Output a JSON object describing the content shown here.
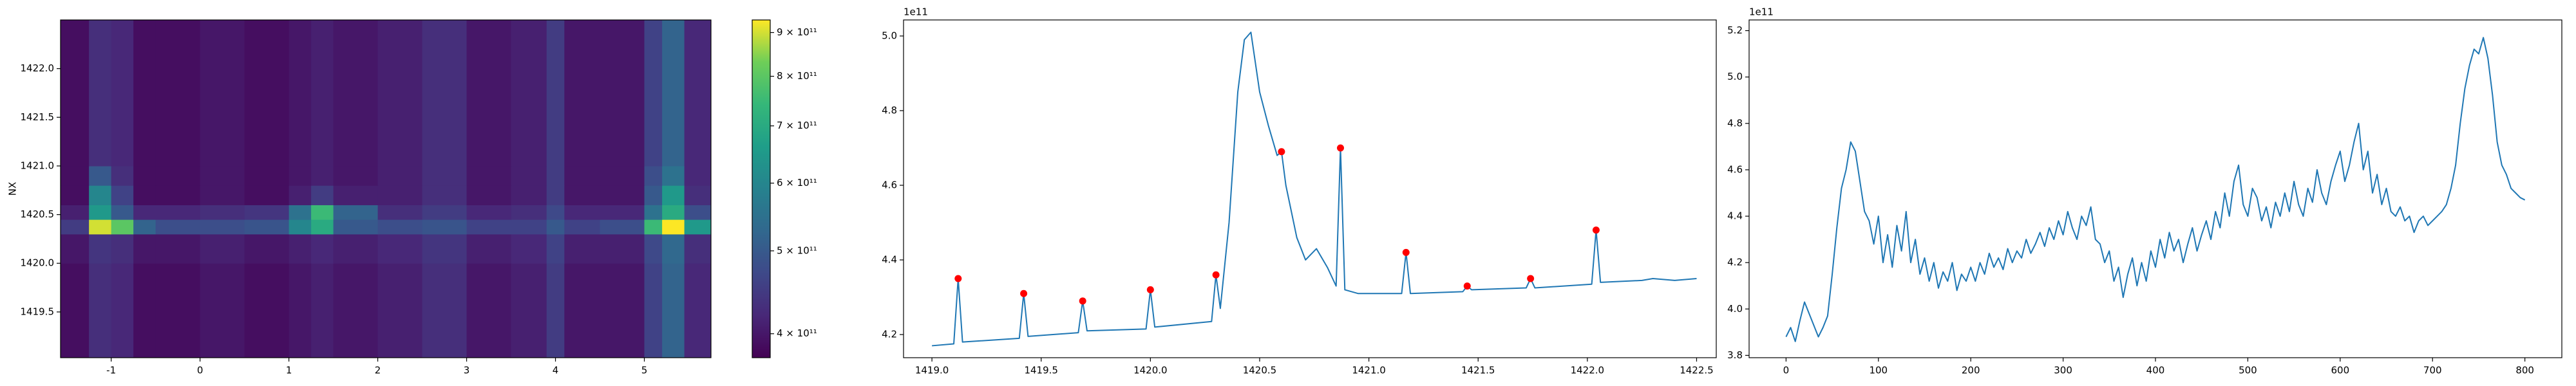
{
  "chart_data": [
    {
      "type": "heatmap",
      "ylabel": "NX",
      "colormap": "viridis",
      "zscale": "log",
      "xlim": [
        -1.57,
        5.75
      ],
      "xticks": [
        -1,
        0,
        1,
        2,
        3,
        4,
        5
      ],
      "ylim": [
        1419.03,
        1422.5
      ],
      "yticks": [
        1419.5,
        {
          "value": 1420,
          "label": "1420.0"
        },
        1420.5,
        {
          "value": 1421,
          "label": "1421.0"
        },
        1421.5,
        {
          "value": 1422,
          "label": "1422.0"
        }
      ],
      "x_edges": [
        -1.57,
        -1.25,
        -1.0,
        -0.75,
        -0.5,
        0,
        0.5,
        1.0,
        1.25,
        1.5,
        2.0,
        2.5,
        3.0,
        3.5,
        3.9,
        4.1,
        4.5,
        5.0,
        5.2,
        5.45,
        5.75
      ],
      "y_edges": [
        1419.03,
        1420.0,
        1420.3,
        1420.45,
        1420.6,
        1420.8,
        1421.0,
        1422.5
      ],
      "z": [
        [
          390000000000.0,
          430000000000.0,
          420000000000.0,
          390000000000.0,
          390000000000.0,
          400000000000.0,
          390000000000.0,
          400000000000.0,
          410000000000.0,
          400000000000.0,
          410000000000.0,
          430000000000.0,
          400000000000.0,
          410000000000.0,
          450000000000.0,
          400000000000.0,
          400000000000.0,
          460000000000.0,
          520000000000.0,
          420000000000.0
        ],
        [
          400000000000.0,
          440000000000.0,
          430000000000.0,
          400000000000.0,
          400000000000.0,
          410000000000.0,
          400000000000.0,
          410000000000.0,
          420000000000.0,
          410000000000.0,
          420000000000.0,
          440000000000.0,
          410000000000.0,
          420000000000.0,
          460000000000.0,
          410000000000.0,
          410000000000.0,
          470000000000.0,
          530000000000.0,
          430000000000.0
        ],
        [
          450000000000.0,
          900000000000.0,
          800000000000.0,
          520000000000.0,
          480000000000.0,
          480000000000.0,
          490000000000.0,
          600000000000.0,
          700000000000.0,
          500000000000.0,
          480000000000.0,
          490000000000.0,
          460000000000.0,
          460000000000.0,
          500000000000.0,
          460000000000.0,
          480000000000.0,
          750000000000.0,
          930000000000.0,
          650000000000.0
        ],
        [
          410000000000.0,
          650000000000.0,
          500000000000.0,
          420000000000.0,
          420000000000.0,
          430000000000.0,
          440000000000.0,
          550000000000.0,
          750000000000.0,
          520000000000.0,
          430000000000.0,
          450000000000.0,
          420000000000.0,
          430000000000.0,
          470000000000.0,
          420000000000.0,
          420000000000.0,
          550000000000.0,
          700000000000.0,
          480000000000.0
        ],
        [
          390000000000.0,
          600000000000.0,
          460000000000.0,
          390000000000.0,
          390000000000.0,
          400000000000.0,
          390000000000.0,
          410000000000.0,
          450000000000.0,
          410000000000.0,
          410000000000.0,
          430000000000.0,
          400000000000.0,
          410000000000.0,
          450000000000.0,
          400000000000.0,
          400000000000.0,
          500000000000.0,
          650000000000.0,
          430000000000.0
        ],
        [
          390000000000.0,
          500000000000.0,
          430000000000.0,
          390000000000.0,
          390000000000.0,
          400000000000.0,
          390000000000.0,
          400000000000.0,
          410000000000.0,
          400000000000.0,
          410000000000.0,
          430000000000.0,
          400000000000.0,
          410000000000.0,
          450000000000.0,
          400000000000.0,
          400000000000.0,
          480000000000.0,
          550000000000.0,
          420000000000.0
        ],
        [
          390000000000.0,
          430000000000.0,
          420000000000.0,
          390000000000.0,
          390000000000.0,
          400000000000.0,
          390000000000.0,
          400000000000.0,
          410000000000.0,
          400000000000.0,
          410000000000.0,
          430000000000.0,
          400000000000.0,
          410000000000.0,
          450000000000.0,
          400000000000.0,
          400000000000.0,
          460000000000.0,
          520000000000.0,
          420000000000.0
        ]
      ],
      "zlim": [
        375000000000.0,
        931000000000.0
      ],
      "zticks": [
        {
          "value": 400000000000.0,
          "label": "4 × 10¹¹"
        },
        {
          "value": 500000000000.0,
          "label": "5 × 10¹¹"
        },
        {
          "value": 600000000000.0,
          "label": "6 × 10¹¹"
        },
        {
          "value": 700000000000.0,
          "label": "7 × 10¹¹"
        },
        {
          "value": 800000000000.0,
          "label": "8 × 10¹¹"
        },
        {
          "value": 900000000000.0,
          "label": "9 × 10¹¹"
        }
      ]
    },
    {
      "type": "line",
      "offset_label": "1e11",
      "xlim": [
        1418.87,
        1422.59
      ],
      "xticks": [
        {
          "value": 1419,
          "label": "1419.0"
        },
        1419.5,
        {
          "value": 1420,
          "label": "1420.0"
        },
        1420.5,
        {
          "value": 1421,
          "label": "1421.0"
        },
        1421.5,
        {
          "value": 1422,
          "label": "1422.0"
        },
        1422.5
      ],
      "ylim": [
        4.138,
        5.043
      ],
      "yticks": [
        4.2,
        4.4,
        4.6,
        4.8,
        {
          "value": 5,
          "label": "5.0"
        }
      ],
      "series": [
        {
          "kind": "line",
          "color": "#1f77b4",
          "x": [
            1419.0,
            1419.1,
            1419.12,
            1419.14,
            1419.4,
            1419.42,
            1419.44,
            1419.67,
            1419.69,
            1419.71,
            1419.98,
            1420.0,
            1420.02,
            1420.28,
            1420.3,
            1420.32,
            1420.36,
            1420.4,
            1420.43,
            1420.46,
            1420.5,
            1420.54,
            1420.58,
            1420.6,
            1420.62,
            1420.67,
            1420.71,
            1420.76,
            1420.81,
            1420.85,
            1420.87,
            1420.89,
            1420.95,
            1421.15,
            1421.17,
            1421.19,
            1421.43,
            1421.45,
            1421.47,
            1421.72,
            1421.74,
            1421.76,
            1422.02,
            1422.04,
            1422.06,
            1422.25,
            1422.3,
            1422.4,
            1422.5
          ],
          "values": [
            4.17,
            4.175,
            4.35,
            4.18,
            4.19,
            4.31,
            4.195,
            4.205,
            4.29,
            4.21,
            4.215,
            4.32,
            4.22,
            4.235,
            4.36,
            4.27,
            4.5,
            4.85,
            4.99,
            5.01,
            4.85,
            4.76,
            4.68,
            4.69,
            4.6,
            4.46,
            4.4,
            4.43,
            4.38,
            4.33,
            4.7,
            4.32,
            4.31,
            4.31,
            4.42,
            4.31,
            4.315,
            4.33,
            4.32,
            4.325,
            4.35,
            4.325,
            4.335,
            4.48,
            4.34,
            4.345,
            4.35,
            4.345,
            4.35
          ]
        },
        {
          "kind": "scatter",
          "color": "#ff0000",
          "x": [
            1419.12,
            1419.42,
            1419.69,
            1420.0,
            1420.3,
            1420.6,
            1420.87,
            1421.17,
            1421.45,
            1421.74,
            1422.04
          ],
          "values": [
            4.35,
            4.31,
            4.29,
            4.32,
            4.36,
            4.69,
            4.7,
            4.42,
            4.33,
            4.35,
            4.48
          ]
        }
      ]
    },
    {
      "type": "line",
      "offset_label": "1e11",
      "xlim": [
        -40,
        840
      ],
      "xticks": [
        0,
        100,
        200,
        300,
        400,
        500,
        600,
        700,
        800
      ],
      "ylim": [
        3.79,
        5.246
      ],
      "yticks": [
        3.8,
        {
          "value": 4,
          "label": "4.0"
        },
        4.2,
        4.4,
        4.6,
        4.8,
        {
          "value": 5,
          "label": "5.0"
        },
        5.2
      ],
      "series": [
        {
          "kind": "line",
          "color": "#1f77b4",
          "x": [
            0,
            5,
            10,
            15,
            20,
            25,
            30,
            35,
            40,
            45,
            50,
            55,
            60,
            65,
            70,
            75,
            80,
            85,
            90,
            95,
            100,
            105,
            110,
            115,
            120,
            125,
            130,
            135,
            140,
            145,
            150,
            155,
            160,
            165,
            170,
            175,
            180,
            185,
            190,
            195,
            200,
            205,
            210,
            215,
            220,
            225,
            230,
            235,
            240,
            245,
            250,
            255,
            260,
            265,
            270,
            275,
            280,
            285,
            290,
            295,
            300,
            305,
            310,
            315,
            320,
            325,
            330,
            335,
            340,
            345,
            350,
            355,
            360,
            365,
            370,
            375,
            380,
            385,
            390,
            395,
            400,
            405,
            410,
            415,
            420,
            425,
            430,
            435,
            440,
            445,
            450,
            455,
            460,
            465,
            470,
            475,
            480,
            485,
            490,
            495,
            500,
            505,
            510,
            515,
            520,
            525,
            530,
            535,
            540,
            545,
            550,
            555,
            560,
            565,
            570,
            575,
            580,
            585,
            590,
            595,
            600,
            605,
            610,
            615,
            620,
            625,
            630,
            635,
            640,
            645,
            650,
            655,
            660,
            665,
            670,
            675,
            680,
            685,
            690,
            695,
            700,
            705,
            710,
            715,
            720,
            725,
            730,
            735,
            740,
            745,
            750,
            755,
            760,
            765,
            770,
            775,
            780,
            785,
            790,
            795,
            800
          ],
          "values": [
            3.88,
            3.92,
            3.86,
            3.95,
            4.03,
            3.98,
            3.93,
            3.88,
            3.92,
            3.97,
            4.15,
            4.35,
            4.52,
            4.6,
            4.72,
            4.68,
            4.55,
            4.42,
            4.38,
            4.28,
            4.4,
            4.2,
            4.32,
            4.18,
            4.36,
            4.25,
            4.42,
            4.2,
            4.3,
            4.15,
            4.22,
            4.12,
            4.2,
            4.09,
            4.16,
            4.12,
            4.2,
            4.08,
            4.15,
            4.12,
            4.18,
            4.12,
            4.2,
            4.15,
            4.24,
            4.18,
            4.22,
            4.17,
            4.26,
            4.2,
            4.25,
            4.22,
            4.3,
            4.24,
            4.28,
            4.33,
            4.27,
            4.35,
            4.3,
            4.38,
            4.32,
            4.42,
            4.35,
            4.3,
            4.4,
            4.36,
            4.44,
            4.3,
            4.28,
            4.2,
            4.25,
            4.12,
            4.18,
            4.05,
            4.15,
            4.22,
            4.1,
            4.2,
            4.12,
            4.25,
            4.18,
            4.3,
            4.22,
            4.33,
            4.25,
            4.3,
            4.2,
            4.28,
            4.35,
            4.25,
            4.32,
            4.38,
            4.3,
            4.42,
            4.35,
            4.5,
            4.4,
            4.55,
            4.62,
            4.45,
            4.4,
            4.52,
            4.48,
            4.38,
            4.44,
            4.35,
            4.46,
            4.4,
            4.5,
            4.42,
            4.55,
            4.45,
            4.4,
            4.52,
            4.46,
            4.6,
            4.5,
            4.45,
            4.55,
            4.62,
            4.68,
            4.55,
            4.62,
            4.72,
            4.8,
            4.6,
            4.68,
            4.5,
            4.58,
            4.45,
            4.52,
            4.42,
            4.4,
            4.44,
            4.38,
            4.4,
            4.33,
            4.38,
            4.4,
            4.36,
            4.38,
            4.4,
            4.42,
            4.45,
            4.52,
            4.62,
            4.8,
            4.95,
            5.05,
            5.12,
            5.1,
            5.17,
            5.08,
            4.92,
            4.72,
            4.62,
            4.58,
            4.52,
            4.5,
            4.48,
            4.47
          ]
        }
      ]
    }
  ]
}
